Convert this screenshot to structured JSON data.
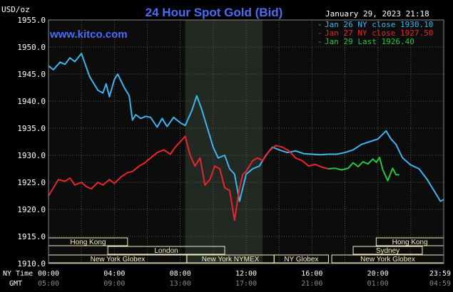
{
  "header": {
    "title": "24 Hour Spot Gold (Bid)",
    "date": "January 29, 2023 21:18",
    "unit": "USD/oz",
    "site": "www.kitco.com"
  },
  "legend": [
    {
      "label": "Jan 26 NY close 1930.10",
      "color": "#3cb6ee"
    },
    {
      "label": "Jan 27 NY close 1927.50",
      "color": "#e8262b"
    },
    {
      "label": "Jan 29 Last 1926.40",
      "color": "#22c83a"
    }
  ],
  "sessions": {
    "bars": [
      {
        "label": "Hong Kong",
        "start": 0,
        "end": 4.8
      },
      {
        "label": "London",
        "start": 3.6,
        "end": 10.7
      },
      {
        "label": "New York Globex",
        "start": 0,
        "end": 8.4
      },
      {
        "label": "New York NYMEX",
        "start": 8.4,
        "end": 13.7
      },
      {
        "label": "NY Globex",
        "start": 13.7,
        "end": 17.0
      },
      {
        "label": "Hong Kong",
        "start": 19.9,
        "end": 24
      },
      {
        "label": "Sydney",
        "start": 18.5,
        "end": 22.7
      },
      {
        "label": "New York Globex",
        "start": 17.2,
        "end": 24
      }
    ]
  },
  "axis": {
    "ny_label": "NY Time",
    "gmt_label": "GMT",
    "ny_ticks": [
      "00:00",
      "04:00",
      "08:00",
      "12:00",
      "16:00",
      "20:00",
      "23:59"
    ],
    "gmt_ticks": [
      "05:00",
      "09:00",
      "13:00",
      "17:00",
      "21:00",
      "01:00",
      "04:59"
    ]
  },
  "colors": {
    "background": "#000000",
    "plot_bg": "#0c0c0c",
    "shaded": "#222822",
    "grid": "#555555",
    "title": "#4a6cf7",
    "text": "#ffffff",
    "session_fill": "#f6f0c2"
  },
  "chart_data": {
    "type": "line",
    "title": "24 Hour Spot Gold (Bid)",
    "ylabel": "USD/oz",
    "ylim": [
      1910,
      1955
    ],
    "xlim": [
      0,
      24
    ],
    "yticks": [
      "1955.0",
      "1950.0",
      "1945.0",
      "1940.0",
      "1935.0",
      "1930.0",
      "1925.0",
      "1920.0",
      "1915.0",
      "1910.0"
    ],
    "grid": true,
    "legend_position": "top-right",
    "shaded_region": [
      8.3,
      13.0
    ],
    "series": [
      {
        "name": "Jan 26 NY close 1930.10",
        "color": "#3cb6ee",
        "x": [
          0,
          0.3,
          0.7,
          1.0,
          1.3,
          1.6,
          2.0,
          2.3,
          2.5,
          3.0,
          3.3,
          3.5,
          3.7,
          4.0,
          4.2,
          4.6,
          4.9,
          5.1,
          5.3,
          5.6,
          5.9,
          6.2,
          6.6,
          6.9,
          7.2,
          7.6,
          8.0,
          8.3,
          8.7,
          9.0,
          9.3,
          9.7,
          10.0,
          10.3,
          10.7,
          11.0,
          11.3,
          11.6,
          12.0,
          12.4,
          12.8,
          13.2,
          13.6,
          14.0,
          14.5,
          15.0,
          15.5,
          16.0,
          16.5,
          17.0,
          17.5,
          18.0,
          18.5,
          19.0,
          19.5,
          20.0,
          20.5,
          20.8,
          21.1,
          21.5,
          22.0,
          22.5,
          23.0,
          23.3,
          23.6,
          23.8,
          24.0
        ],
        "values": [
          1946.5,
          1945.8,
          1947.2,
          1946.8,
          1948.0,
          1947.3,
          1948.8,
          1946.2,
          1944.5,
          1942.0,
          1941.5,
          1943.2,
          1940.8,
          1944.0,
          1945.0,
          1942.5,
          1941.0,
          1936.5,
          1937.5,
          1936.8,
          1937.2,
          1937.0,
          1935.2,
          1936.8,
          1935.3,
          1937.0,
          1936.0,
          1935.5,
          1938.2,
          1941.0,
          1938.5,
          1934.5,
          1931.5,
          1929.5,
          1930.0,
          1927.5,
          1926.5,
          1921.5,
          1926.5,
          1927.5,
          1928.0,
          1930.0,
          1931.5,
          1931.0,
          1930.5,
          1930.8,
          1930.3,
          1930.2,
          1930.1,
          1930.2,
          1930.2,
          1930.5,
          1931.0,
          1932.0,
          1932.5,
          1933.0,
          1934.5,
          1933.0,
          1932.0,
          1929.5,
          1928.2,
          1927.5,
          1925.5,
          1924.0,
          1922.5,
          1921.5,
          1921.8
        ]
      },
      {
        "name": "Jan 27 NY close 1927.50",
        "color": "#e8262b",
        "x": [
          0,
          0.3,
          0.6,
          1.0,
          1.3,
          1.6,
          2.0,
          2.3,
          2.6,
          3.0,
          3.3,
          3.7,
          4.0,
          4.4,
          4.8,
          5.1,
          5.5,
          5.8,
          6.2,
          6.6,
          7.0,
          7.4,
          7.7,
          8.0,
          8.3,
          8.6,
          8.9,
          9.2,
          9.5,
          9.8,
          10.1,
          10.4,
          10.7,
          11.0,
          11.3,
          11.6,
          11.8,
          12.0,
          12.4,
          12.7,
          13.0,
          13.4,
          13.8,
          14.2,
          14.6,
          15.0,
          15.4,
          15.8,
          16.2,
          16.6,
          17.0
        ],
        "values": [
          1922.5,
          1924.0,
          1925.5,
          1925.2,
          1925.8,
          1924.5,
          1925.0,
          1924.2,
          1923.8,
          1925.0,
          1924.5,
          1925.5,
          1924.8,
          1926.0,
          1926.8,
          1927.0,
          1928.0,
          1928.5,
          1929.5,
          1930.5,
          1931.0,
          1930.2,
          1931.5,
          1932.5,
          1933.5,
          1930.0,
          1928.0,
          1929.5,
          1924.5,
          1925.5,
          1928.0,
          1927.5,
          1924.0,
          1923.5,
          1918.0,
          1924.0,
          1926.5,
          1927.0,
          1929.0,
          1929.5,
          1929.0,
          1930.8,
          1931.8,
          1931.5,
          1930.8,
          1929.5,
          1929.0,
          1928.0,
          1928.3,
          1927.8,
          1927.5
        ]
      },
      {
        "name": "Jan 29 Last 1926.40",
        "color": "#22c83a",
        "x": [
          17.0,
          17.4,
          17.8,
          18.2,
          18.5,
          18.8,
          19.1,
          19.4,
          19.7,
          19.9,
          20.1,
          20.3,
          20.6,
          20.9,
          21.1,
          21.3
        ],
        "values": [
          1927.5,
          1927.6,
          1927.3,
          1927.6,
          1928.6,
          1927.9,
          1928.8,
          1928.4,
          1929.3,
          1928.7,
          1929.6,
          1927.3,
          1925.3,
          1927.6,
          1926.4,
          1926.4
        ]
      }
    ]
  }
}
